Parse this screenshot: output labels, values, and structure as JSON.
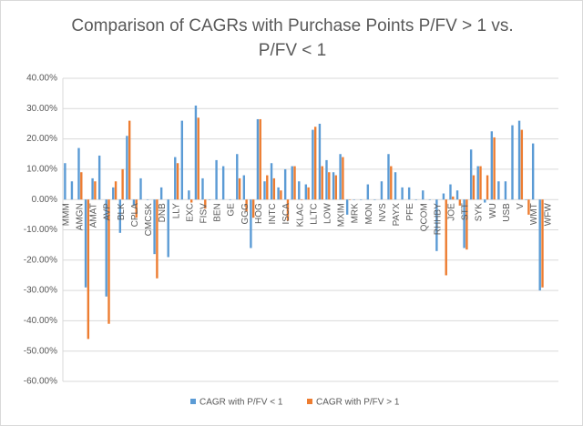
{
  "chart_data": {
    "type": "bar",
    "title": "Comparison of CAGRs with Purchase Points P/FV > 1 vs. P/FV < 1",
    "categories": [
      "MMM",
      null,
      "AMGN",
      null,
      "AMAT",
      null,
      "AVP",
      null,
      "BLK",
      null,
      "CPLA",
      null,
      "CMCSK",
      null,
      "DNB",
      null,
      "LLY",
      null,
      "EXC",
      null,
      "FISV",
      null,
      "BEN",
      null,
      "GE",
      null,
      "GGG",
      null,
      "HOG",
      null,
      "INTC",
      null,
      "ISCA",
      null,
      "KLAC",
      null,
      "LLTC",
      null,
      "LOW",
      null,
      "MXIM",
      null,
      "MRK",
      null,
      "MON",
      null,
      "NVS",
      null,
      "PAYX",
      null,
      "PFE",
      null,
      "QCOM",
      null,
      "RHHBY",
      null,
      "JOE",
      null,
      "STT",
      null,
      "SYK",
      null,
      "WU",
      null,
      "USB",
      null,
      "V",
      null,
      "WMT",
      null,
      "WFW",
      null
    ],
    "series": [
      {
        "name": "CAGR with P/FV < 1",
        "color": "#5b9bd5",
        "values": [
          12,
          6,
          17,
          -29,
          7,
          14.5,
          -32,
          4,
          -11,
          21,
          -2,
          7,
          0,
          -18,
          4,
          -19,
          14,
          26,
          3,
          31,
          7,
          0,
          13,
          11,
          0,
          15,
          8,
          -16,
          26.5,
          6,
          12,
          4,
          10,
          11,
          6,
          5,
          23,
          25,
          13,
          9,
          15,
          -5,
          0,
          0,
          5,
          0,
          6,
          15,
          9,
          4,
          4,
          0,
          3,
          0,
          -17,
          2,
          5,
          3,
          -16,
          16.5,
          11,
          -1,
          22.5,
          6,
          6,
          24.5,
          26,
          0,
          18.5,
          -30,
          null,
          null
        ]
      },
      {
        "name": "CAGR with P/FV > 1",
        "color": "#ed7d31",
        "values": [
          null,
          null,
          9,
          -46,
          6,
          null,
          -41,
          6,
          10,
          26,
          -6,
          null,
          null,
          -26,
          null,
          null,
          12,
          null,
          -1,
          27,
          -3,
          null,
          null,
          null,
          null,
          7,
          -4,
          -6,
          26.5,
          8,
          7,
          3,
          -7,
          11,
          0,
          4,
          24,
          11,
          9,
          8,
          14,
          0,
          null,
          null,
          null,
          null,
          null,
          11,
          null,
          null,
          null,
          null,
          null,
          null,
          null,
          -25,
          1,
          -2,
          -16.5,
          8,
          11,
          8,
          20.5,
          null,
          null,
          null,
          23,
          -5,
          null,
          -29,
          null,
          null
        ]
      }
    ],
    "ylim": [
      -60,
      40
    ],
    "yticks": [
      {
        "value": -60,
        "label": "-60.00%"
      },
      {
        "value": -50,
        "label": "-50.00%"
      },
      {
        "value": -40,
        "label": "-40.00%"
      },
      {
        "value": -30,
        "label": "-30.00%"
      },
      {
        "value": -20,
        "label": "-20.00%"
      },
      {
        "value": -10,
        "label": "-10.00%"
      },
      {
        "value": 0,
        "label": "0.00%"
      },
      {
        "value": 10,
        "label": "10.00%"
      },
      {
        "value": 20,
        "label": "20.00%"
      },
      {
        "value": 30,
        "label": "30.00%"
      },
      {
        "value": 40,
        "label": "40.00%"
      }
    ],
    "grid": true,
    "legend": "bottom"
  }
}
